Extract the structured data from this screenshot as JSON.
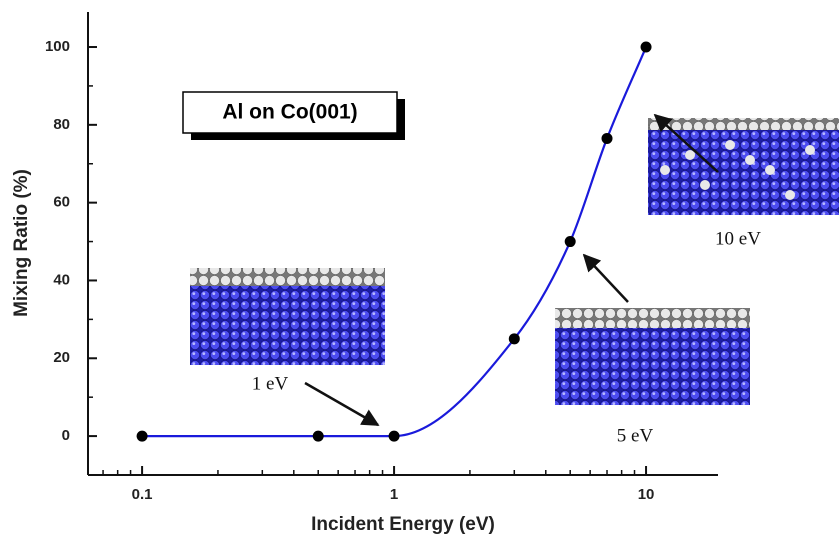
{
  "chart_data": {
    "type": "line",
    "x_label": "Incident Energy (eV)",
    "y_label": "Mixing Ratio (%)",
    "x": [
      0.1,
      0.5,
      1,
      3,
      5,
      7,
      10
    ],
    "series": [
      {
        "values": [
          0,
          0,
          0,
          25,
          50,
          76.5,
          100
        ],
        "color": "#1a1adb",
        "marker_color": "#000000"
      }
    ],
    "xscale": "log",
    "xlim": [
      0.061,
      19.3
    ],
    "xticks": [
      0.1,
      1,
      10
    ],
    "xminorticks": [
      0.07,
      0.08,
      0.09,
      0.2,
      0.3,
      0.4,
      0.5,
      0.6,
      0.7,
      0.8,
      0.9,
      2,
      3,
      4,
      5,
      6,
      7,
      8,
      9
    ],
    "ylim": [
      -10,
      109
    ],
    "yticks": [
      0,
      20,
      40,
      60,
      80,
      100
    ],
    "yminorticks": [
      10,
      30,
      50,
      70,
      90
    ],
    "annotations": [
      {
        "text": "Al on Co(001)"
      },
      {
        "text": "1 eV"
      },
      {
        "text": "5 eV"
      },
      {
        "text": "10 eV"
      }
    ]
  }
}
